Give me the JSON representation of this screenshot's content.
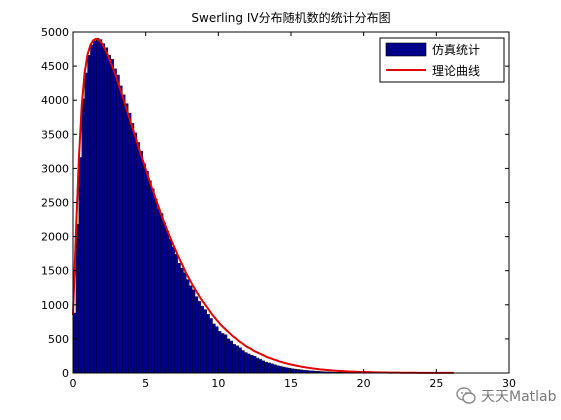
{
  "chart_data": {
    "type": "bar",
    "title": "Swerling IV分布随机数的统计分布图",
    "xlabel": "",
    "ylabel": "",
    "xlim": [
      0,
      30
    ],
    "ylim": [
      0,
      5000
    ],
    "xticks": [
      "0",
      "5",
      "10",
      "15",
      "20",
      "25",
      "30"
    ],
    "yticks": [
      "0",
      "500",
      "1000",
      "1500",
      "2000",
      "2500",
      "3000",
      "3500",
      "4000",
      "4500",
      "5000"
    ],
    "bin_width": 0.2,
    "series": [
      {
        "name": "仿真统计",
        "kind": "histogram",
        "color": "#00008b",
        "bin_starts": [
          0.0,
          0.2,
          0.4,
          0.6,
          0.8,
          1.0,
          1.2,
          1.4,
          1.6,
          1.8,
          2.0,
          2.2,
          2.4,
          2.6,
          2.8,
          3.0,
          3.2,
          3.4,
          3.6,
          3.8,
          4.0,
          4.2,
          4.4,
          4.6,
          4.8,
          5.0,
          5.2,
          5.4,
          5.6,
          5.8,
          6.0,
          6.2,
          6.4,
          6.6,
          6.8,
          7.0,
          7.2,
          7.4,
          7.6,
          7.8,
          8.0,
          8.2,
          8.4,
          8.6,
          8.8,
          9.0,
          9.2,
          9.4,
          9.6,
          9.8,
          10.0,
          10.2,
          10.4,
          10.6,
          10.8,
          11.0,
          11.2,
          11.4,
          11.6,
          11.8,
          12.0,
          12.2,
          12.4,
          12.6,
          12.8,
          13.0,
          13.2,
          13.4,
          13.6,
          13.8,
          14.0,
          14.2,
          14.4,
          14.6,
          14.8,
          15.0,
          15.2,
          15.4,
          15.6,
          15.8,
          16.0,
          16.2,
          16.4,
          16.6,
          16.8,
          17.0,
          17.2,
          17.4,
          17.6,
          17.8,
          18.0,
          18.2,
          18.4,
          18.6,
          18.8,
          19.0,
          19.2,
          19.4,
          19.6,
          19.8,
          20.0,
          20.2,
          20.4,
          20.6,
          20.8,
          21.0,
          21.2,
          21.4,
          21.6,
          21.8,
          22.0,
          22.2,
          22.4,
          22.6,
          22.8,
          23.0,
          23.2,
          23.4,
          23.6,
          23.8,
          24.0,
          24.2,
          24.4,
          24.6,
          24.8,
          25.0,
          25.2,
          25.4,
          25.6,
          25.8,
          26.0,
          26.2
        ],
        "values": [
          880,
          2180,
          3160,
          4020,
          4400,
          4660,
          4810,
          4870,
          4910,
          4890,
          4830,
          4770,
          4660,
          4600,
          4460,
          4370,
          4210,
          4080,
          3950,
          3810,
          3660,
          3520,
          3380,
          3250,
          3070,
          2960,
          2820,
          2700,
          2550,
          2410,
          2340,
          2200,
          2080,
          1960,
          1850,
          1740,
          1610,
          1540,
          1470,
          1370,
          1280,
          1220,
          1120,
          1050,
          980,
          930,
          860,
          800,
          720,
          680,
          610,
          580,
          560,
          500,
          470,
          420,
          400,
          370,
          330,
          300,
          280,
          260,
          245,
          220,
          200,
          180,
          160,
          148,
          135,
          120,
          108,
          97,
          88,
          79,
          72,
          64,
          58,
          52,
          47,
          42,
          38,
          34,
          31,
          28,
          25,
          22,
          20,
          18,
          16,
          14,
          13,
          12,
          11,
          10,
          9,
          8,
          7,
          6,
          6,
          5,
          5,
          4,
          4,
          4,
          3,
          3,
          3,
          2,
          2,
          2,
          2,
          2,
          1,
          1,
          1,
          1,
          1,
          1,
          1,
          1,
          1,
          1,
          1,
          1,
          1,
          1,
          1,
          1,
          1,
          1,
          1,
          1
        ]
      },
      {
        "name": "理论曲线",
        "kind": "line",
        "color": "#e00000",
        "x": [
          0.0,
          0.2,
          0.4,
          0.6,
          0.8,
          1.0,
          1.2,
          1.4,
          1.6,
          1.8,
          2.0,
          2.2,
          2.4,
          2.6,
          2.8,
          3.0,
          3.2,
          3.4,
          3.6,
          3.8,
          4.0,
          4.2,
          4.4,
          4.6,
          4.8,
          5.0,
          5.2,
          5.4,
          5.6,
          5.8,
          6.0,
          6.2,
          6.4,
          6.6,
          6.8,
          7.0,
          7.2,
          7.4,
          7.6,
          7.8,
          8.0,
          8.2,
          8.4,
          8.6,
          8.8,
          9.0,
          9.2,
          9.4,
          9.6,
          9.8,
          10.0,
          10.2,
          10.4,
          10.6,
          10.8,
          11.0,
          11.2,
          11.4,
          11.6,
          11.8,
          12.0,
          12.2,
          12.4,
          12.6,
          12.8,
          13.0,
          13.2,
          13.4,
          13.6,
          13.8,
          14.0,
          14.2,
          14.4,
          14.6,
          14.8,
          15.0,
          15.2,
          15.4,
          15.6,
          15.8,
          16.0,
          16.2,
          16.4,
          16.6,
          16.8,
          17.0,
          17.2,
          17.4,
          17.6,
          17.8,
          18.0,
          18.2,
          18.4,
          18.6,
          18.8,
          19.0,
          19.2,
          19.4,
          19.6,
          19.8,
          20.0,
          20.2,
          20.4,
          20.6,
          20.8,
          21.0,
          21.2,
          21.4,
          21.6,
          21.8,
          22.0,
          22.2,
          22.4,
          22.6,
          22.8,
          23.0,
          23.2,
          23.4,
          23.6,
          23.8,
          24.0,
          24.2,
          24.4,
          24.6,
          24.8,
          25.0,
          25.2,
          25.4,
          25.6,
          25.8,
          26.0,
          26.2
        ],
        "y": [
          850,
          2050,
          3120,
          3920,
          4400,
          4670,
          4810,
          4880,
          4900,
          4880,
          4830,
          4750,
          4660,
          4550,
          4440,
          4320,
          4190,
          4060,
          3930,
          3790,
          3660,
          3520,
          3390,
          3250,
          3120,
          2990,
          2860,
          2730,
          2610,
          2490,
          2370,
          2250,
          2140,
          2030,
          1930,
          1830,
          1730,
          1640,
          1550,
          1460,
          1380,
          1300,
          1230,
          1160,
          1090,
          1030,
          970,
          910,
          850,
          800,
          750,
          700,
          660,
          620,
          580,
          540,
          510,
          470,
          440,
          410,
          380,
          360,
          330,
          310,
          290,
          270,
          250,
          230,
          215,
          200,
          185,
          170,
          158,
          146,
          135,
          125,
          115,
          106,
          98,
          90,
          83,
          76,
          70,
          64,
          59,
          54,
          50,
          46,
          42,
          38,
          35,
          32,
          29,
          27,
          24,
          22,
          20,
          18,
          17,
          15,
          14,
          13,
          12,
          11,
          10,
          9,
          8,
          7,
          7,
          6,
          6,
          5,
          5,
          4,
          4,
          4,
          3,
          3,
          3,
          2,
          2,
          2,
          2,
          2,
          1,
          1,
          1,
          1,
          1,
          1,
          1,
          1
        ]
      }
    ],
    "legend": {
      "placement": "top-right",
      "entries": [
        "仿真统计",
        "理论曲线"
      ]
    },
    "grid": false
  },
  "watermark": {
    "text": "天天Matlab",
    "icon": "wechat-logo-icon"
  }
}
